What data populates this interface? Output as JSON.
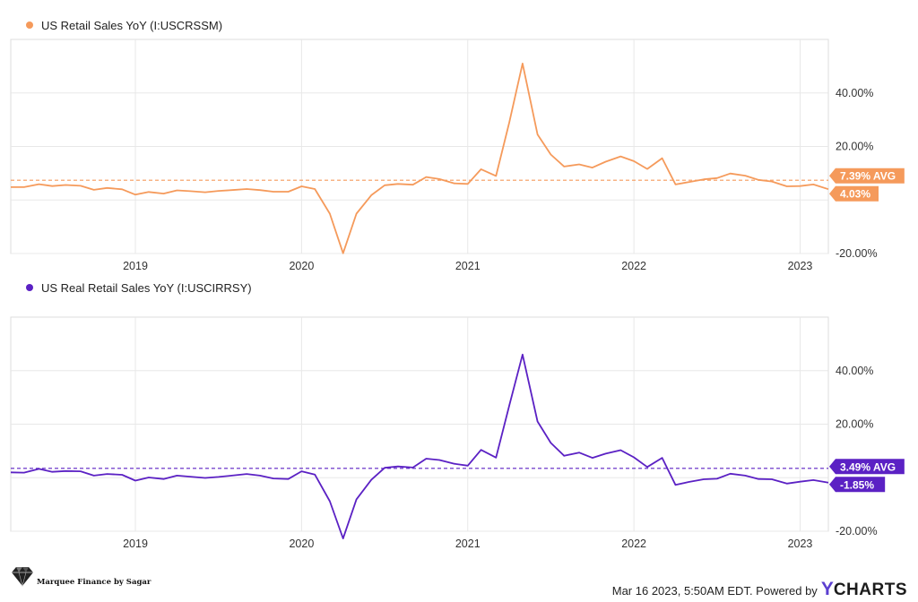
{
  "chart_data": [
    {
      "type": "line",
      "legend_label": "US Retail Sales YoY (I:USCRSSM)",
      "color": "#f59a5b",
      "ylim": [
        -20,
        60
      ],
      "yticks": [
        40,
        20,
        -20
      ],
      "ytick_labels": [
        "40.00%",
        "20.00%",
        "-20.00%"
      ],
      "x_tick_labels": [
        "2019",
        "2020",
        "2021",
        "2022",
        "2023"
      ],
      "x_tick_positions": [
        2019,
        2020,
        2021,
        2022,
        2023
      ],
      "xlim": [
        2018.25,
        2023.17
      ],
      "avg_value": 7.39,
      "avg_label": "7.39% AVG",
      "last_value": 4.03,
      "last_label": "4.03%",
      "x": [
        2018.25,
        2018.33,
        2018.42,
        2018.5,
        2018.58,
        2018.67,
        2018.75,
        2018.83,
        2018.92,
        2019.0,
        2019.08,
        2019.17,
        2019.25,
        2019.33,
        2019.42,
        2019.5,
        2019.58,
        2019.67,
        2019.75,
        2019.83,
        2019.92,
        2020.0,
        2020.08,
        2020.17,
        2020.25,
        2020.33,
        2020.42,
        2020.5,
        2020.58,
        2020.67,
        2020.75,
        2020.83,
        2020.92,
        2021.0,
        2021.08,
        2021.17,
        2021.25,
        2021.33,
        2021.42,
        2021.5,
        2021.58,
        2021.67,
        2021.75,
        2021.83,
        2021.92,
        2022.0,
        2022.08,
        2022.17,
        2022.25,
        2022.33,
        2022.42,
        2022.5,
        2022.58,
        2022.67,
        2022.75,
        2022.83,
        2022.92,
        2023.0,
        2023.08,
        2023.17
      ],
      "values": [
        4.8,
        4.8,
        5.9,
        5.2,
        5.6,
        5.3,
        3.8,
        4.5,
        4.0,
        2.0,
        3.0,
        2.4,
        3.6,
        3.3,
        2.9,
        3.4,
        3.7,
        4.1,
        3.7,
        3.1,
        3.1,
        5.1,
        4.1,
        -5.1,
        -19.9,
        -5.1,
        1.8,
        5.5,
        6.0,
        5.7,
        8.6,
        7.8,
        6.2,
        6.0,
        11.5,
        9.0,
        29.0,
        51.0,
        24.5,
        17.0,
        12.5,
        13.3,
        12.1,
        14.3,
        16.3,
        14.5,
        11.6,
        15.6,
        5.8,
        6.7,
        7.7,
        8.2,
        9.9,
        9.1,
        7.5,
        6.9,
        5.1,
        5.2,
        5.8,
        4.03
      ]
    },
    {
      "type": "line",
      "legend_label": "US Real Retail Sales YoY (I:USCIRRSY)",
      "color": "#5b21c4",
      "ylim": [
        -20,
        60
      ],
      "yticks": [
        40,
        20,
        -20
      ],
      "ytick_labels": [
        "40.00%",
        "20.00%",
        "-20.00%"
      ],
      "x_tick_labels": [
        "2019",
        "2020",
        "2021",
        "2022",
        "2023"
      ],
      "x_tick_positions": [
        2019,
        2020,
        2021,
        2022,
        2023
      ],
      "xlim": [
        2018.25,
        2023.17
      ],
      "avg_value": 3.49,
      "avg_label": "3.49% AVG",
      "last_value": -1.85,
      "last_label": "-1.85%",
      "x": [
        2018.25,
        2018.33,
        2018.42,
        2018.5,
        2018.58,
        2018.67,
        2018.75,
        2018.83,
        2018.92,
        2019.0,
        2019.08,
        2019.17,
        2019.25,
        2019.33,
        2019.42,
        2019.5,
        2019.58,
        2019.67,
        2019.75,
        2019.83,
        2019.92,
        2020.0,
        2020.08,
        2020.17,
        2020.25,
        2020.33,
        2020.42,
        2020.5,
        2020.58,
        2020.67,
        2020.75,
        2020.83,
        2020.92,
        2021.0,
        2021.08,
        2021.17,
        2021.25,
        2021.33,
        2021.42,
        2021.5,
        2021.58,
        2021.67,
        2021.75,
        2021.83,
        2021.92,
        2022.0,
        2022.08,
        2022.17,
        2022.25,
        2022.33,
        2022.42,
        2022.5,
        2022.58,
        2022.67,
        2022.75,
        2022.83,
        2022.92,
        2023.0,
        2023.08,
        2023.17
      ],
      "values": [
        2.0,
        1.9,
        3.3,
        2.2,
        2.5,
        2.4,
        0.8,
        1.4,
        1.1,
        -1.1,
        0.1,
        -0.5,
        0.8,
        0.4,
        -0.1,
        0.3,
        0.8,
        1.4,
        0.8,
        -0.3,
        -0.5,
        2.4,
        1.2,
        -8.8,
        -22.7,
        -8.1,
        -0.8,
        3.7,
        4.2,
        3.8,
        7.1,
        6.6,
        5.2,
        4.5,
        10.4,
        7.5,
        27.0,
        46.0,
        21.0,
        13.0,
        8.2,
        9.4,
        7.4,
        9.0,
        10.3,
        7.6,
        4.0,
        7.4,
        -2.7,
        -1.6,
        -0.6,
        -0.4,
        1.5,
        0.8,
        -0.5,
        -0.6,
        -2.2,
        -1.5,
        -0.9,
        -1.85
      ]
    }
  ],
  "footer": {
    "brand_name": "Marquee Finance by Sagar",
    "timestamp": "Mar 16 2023, 5:50AM EDT. Powered by",
    "ycharts_y": "Y",
    "ycharts_rest": "CHARTS"
  }
}
